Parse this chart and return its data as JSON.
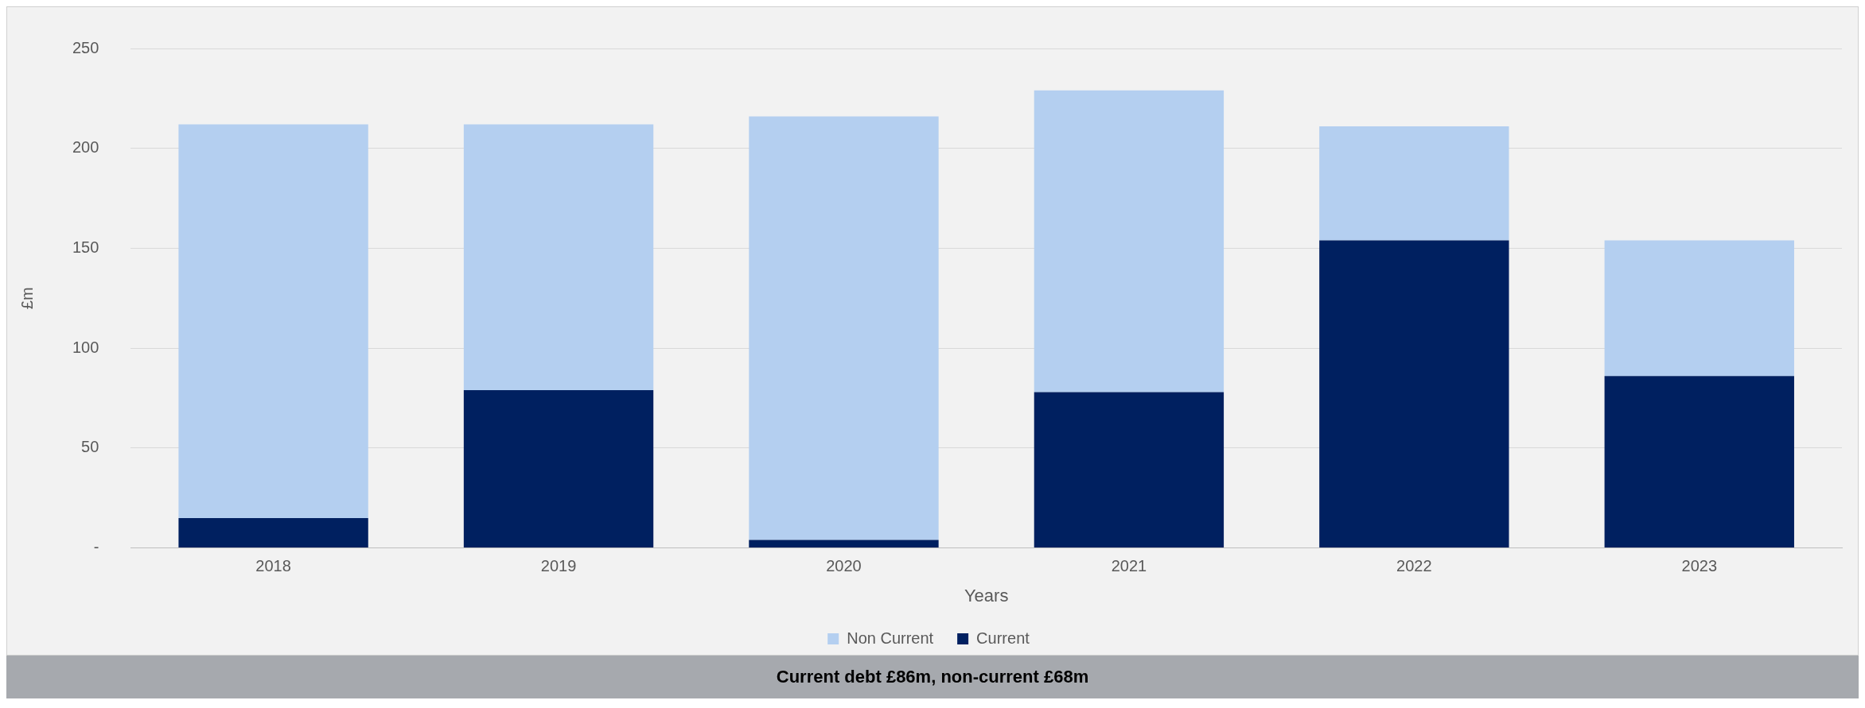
{
  "chart_data": {
    "type": "bar",
    "xlabel": "Years",
    "ylabel": "£m",
    "categories": [
      "2018",
      "2019",
      "2020",
      "2021",
      "2022",
      "2023"
    ],
    "series": [
      {
        "name": "Current",
        "color": "#002060",
        "values": [
          15,
          79,
          4,
          78,
          154,
          86
        ]
      },
      {
        "name": "Non Current",
        "color": "#b4cff0",
        "values": [
          197,
          133,
          212,
          151,
          57,
          68
        ]
      }
    ],
    "stacked": true,
    "ylim": [
      0,
      250
    ],
    "yticks": [
      {
        "value": 0,
        "label": "-"
      },
      50,
      100,
      150,
      200,
      250
    ],
    "grid": "y",
    "legend": "bottom",
    "annotations": [
      "Current debt £86m, non-current £68m"
    ]
  }
}
